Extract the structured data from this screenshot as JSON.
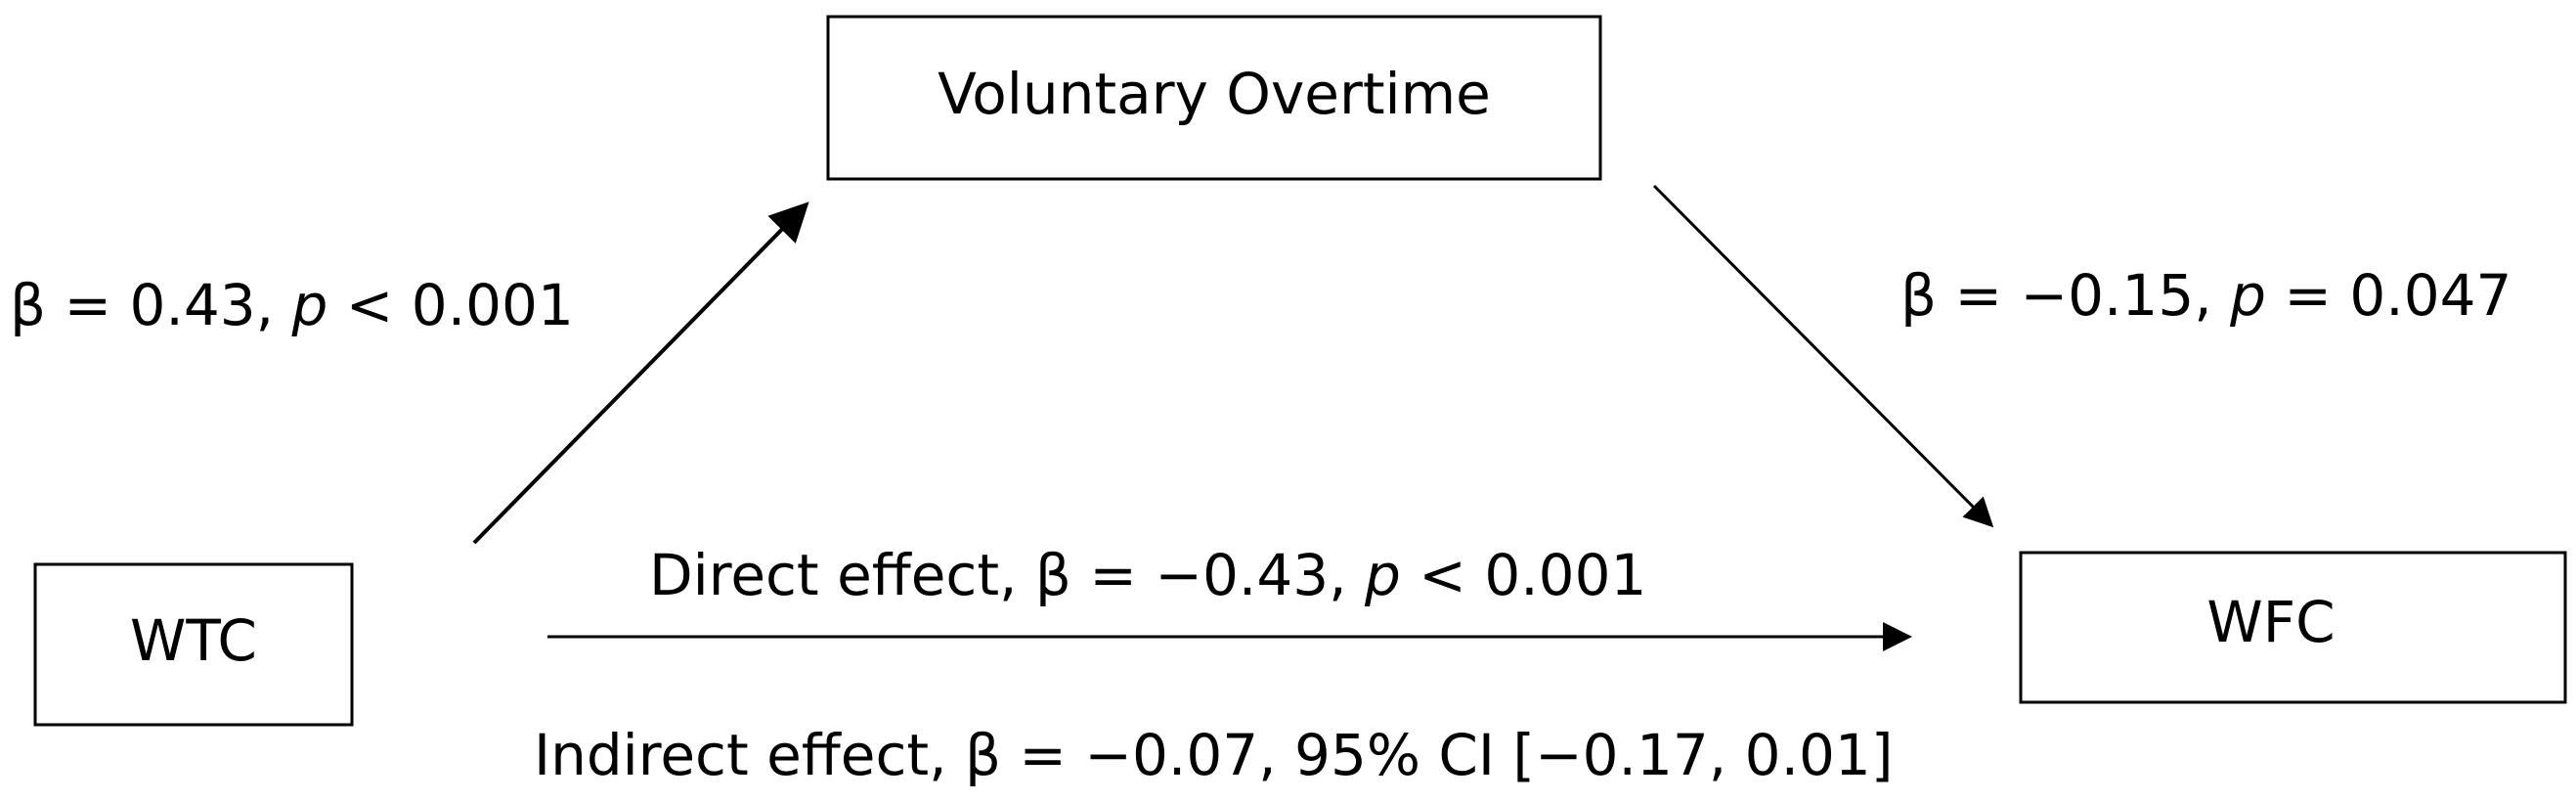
{
  "diagram": {
    "nodes": {
      "mediator": {
        "label": "Voluntary Overtime"
      },
      "predictor": {
        "label": "WTC"
      },
      "outcome": {
        "label": "WFC"
      }
    },
    "paths": {
      "a_path": {
        "beta_text": "β = 0.43, ",
        "p_symbol": "p",
        "p_text": " < 0.001"
      },
      "b_path": {
        "beta_text": "β = −0.15, ",
        "p_symbol": "p",
        "p_text": " = 0.047"
      },
      "direct": {
        "beta_text": "Direct effect, β = −0.43, ",
        "p_symbol": "p",
        "p_text": " < 0.001"
      },
      "indirect": {
        "text": "Indirect effect, β = −0.07, 95% CI [−0.17, 0.01]"
      }
    }
  }
}
